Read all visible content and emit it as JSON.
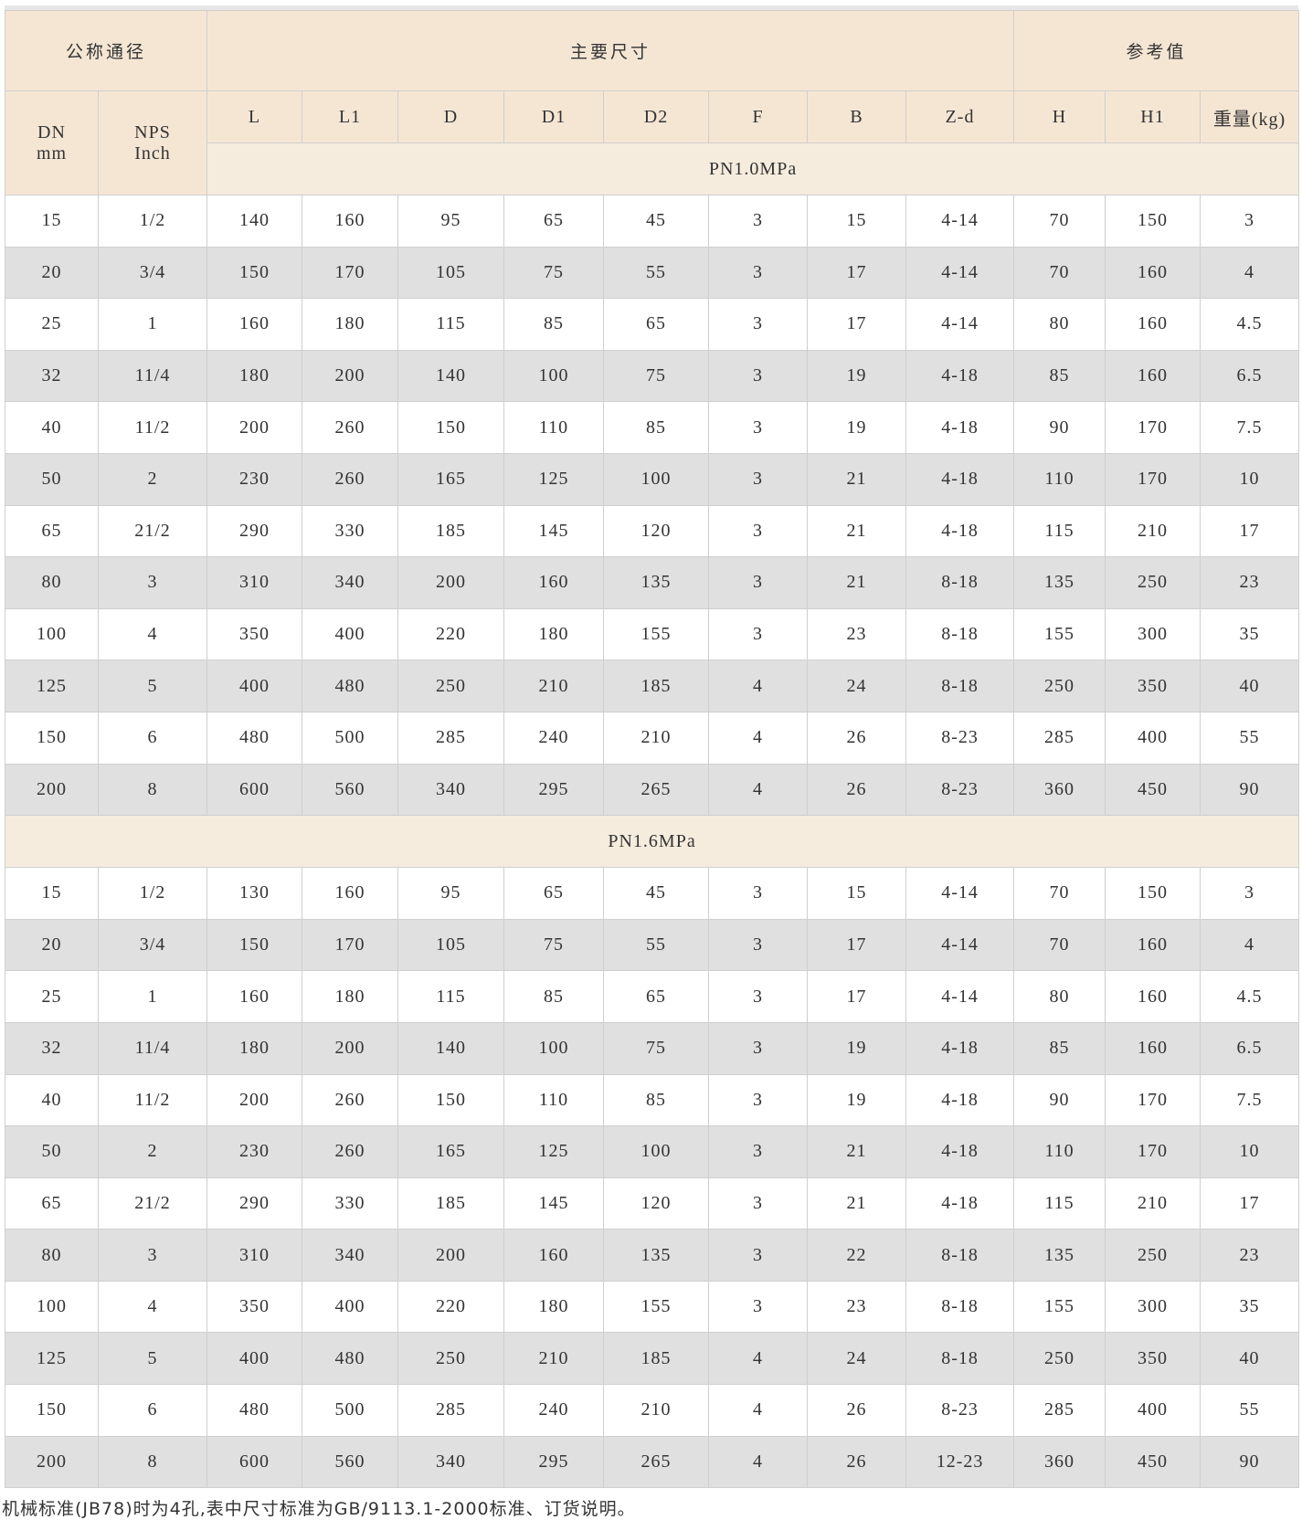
{
  "header": {
    "group_nominal": "公称通径",
    "group_main": "主要尺寸",
    "group_ref": "参考值",
    "dn": [
      "DN",
      "mm"
    ],
    "nps": [
      "NPS",
      "Inch"
    ],
    "columns": [
      "L",
      "L1",
      "D",
      "D1",
      "D2",
      "F",
      "B",
      "Z-d",
      "H",
      "H1",
      "重量(kg)"
    ]
  },
  "sections": [
    {
      "label": "PN1.0MPa",
      "rows": [
        [
          "15",
          "1/2",
          "140",
          "160",
          "95",
          "65",
          "45",
          "3",
          "15",
          "4-14",
          "70",
          "150",
          "3"
        ],
        [
          "20",
          "3/4",
          "150",
          "170",
          "105",
          "75",
          "55",
          "3",
          "17",
          "4-14",
          "70",
          "160",
          "4"
        ],
        [
          "25",
          "1",
          "160",
          "180",
          "115",
          "85",
          "65",
          "3",
          "17",
          "4-14",
          "80",
          "160",
          "4.5"
        ],
        [
          "32",
          "11/4",
          "180",
          "200",
          "140",
          "100",
          "75",
          "3",
          "19",
          "4-18",
          "85",
          "160",
          "6.5"
        ],
        [
          "40",
          "11/2",
          "200",
          "260",
          "150",
          "110",
          "85",
          "3",
          "19",
          "4-18",
          "90",
          "170",
          "7.5"
        ],
        [
          "50",
          "2",
          "230",
          "260",
          "165",
          "125",
          "100",
          "3",
          "21",
          "4-18",
          "110",
          "170",
          "10"
        ],
        [
          "65",
          "21/2",
          "290",
          "330",
          "185",
          "145",
          "120",
          "3",
          "21",
          "4-18",
          "115",
          "210",
          "17"
        ],
        [
          "80",
          "3",
          "310",
          "340",
          "200",
          "160",
          "135",
          "3",
          "21",
          "8-18",
          "135",
          "250",
          "23"
        ],
        [
          "100",
          "4",
          "350",
          "400",
          "220",
          "180",
          "155",
          "3",
          "23",
          "8-18",
          "155",
          "300",
          "35"
        ],
        [
          "125",
          "5",
          "400",
          "480",
          "250",
          "210",
          "185",
          "4",
          "24",
          "8-18",
          "250",
          "350",
          "40"
        ],
        [
          "150",
          "6",
          "480",
          "500",
          "285",
          "240",
          "210",
          "4",
          "26",
          "8-23",
          "285",
          "400",
          "55"
        ],
        [
          "200",
          "8",
          "600",
          "560",
          "340",
          "295",
          "265",
          "4",
          "26",
          "8-23",
          "360",
          "450",
          "90"
        ]
      ]
    },
    {
      "label": "PN1.6MPa",
      "rows": [
        [
          "15",
          "1/2",
          "130",
          "160",
          "95",
          "65",
          "45",
          "3",
          "15",
          "4-14",
          "70",
          "150",
          "3"
        ],
        [
          "20",
          "3/4",
          "150",
          "170",
          "105",
          "75",
          "55",
          "3",
          "17",
          "4-14",
          "70",
          "160",
          "4"
        ],
        [
          "25",
          "1",
          "160",
          "180",
          "115",
          "85",
          "65",
          "3",
          "17",
          "4-14",
          "80",
          "160",
          "4.5"
        ],
        [
          "32",
          "11/4",
          "180",
          "200",
          "140",
          "100",
          "75",
          "3",
          "19",
          "4-18",
          "85",
          "160",
          "6.5"
        ],
        [
          "40",
          "11/2",
          "200",
          "260",
          "150",
          "110",
          "85",
          "3",
          "19",
          "4-18",
          "90",
          "170",
          "7.5"
        ],
        [
          "50",
          "2",
          "230",
          "260",
          "165",
          "125",
          "100",
          "3",
          "21",
          "4-18",
          "110",
          "170",
          "10"
        ],
        [
          "65",
          "21/2",
          "290",
          "330",
          "185",
          "145",
          "120",
          "3",
          "21",
          "4-18",
          "115",
          "210",
          "17"
        ],
        [
          "80",
          "3",
          "310",
          "340",
          "200",
          "160",
          "135",
          "3",
          "22",
          "8-18",
          "135",
          "250",
          "23"
        ],
        [
          "100",
          "4",
          "350",
          "400",
          "220",
          "180",
          "155",
          "3",
          "23",
          "8-18",
          "155",
          "300",
          "35"
        ],
        [
          "125",
          "5",
          "400",
          "480",
          "250",
          "210",
          "185",
          "4",
          "24",
          "8-18",
          "250",
          "350",
          "40"
        ],
        [
          "150",
          "6",
          "480",
          "500",
          "285",
          "240",
          "210",
          "4",
          "26",
          "8-23",
          "285",
          "400",
          "55"
        ],
        [
          "200",
          "8",
          "600",
          "560",
          "340",
          "295",
          "265",
          "4",
          "26",
          "12-23",
          "360",
          "450",
          "90"
        ]
      ]
    }
  ],
  "footnote": "机械标准(JB78)时为4孔,表中尺寸标准为GB/9113.1-2000标准、订货说明。",
  "colors": {
    "header_bg": "#f5e6d4",
    "section_bg": "#f5ecdd",
    "alt_row_bg": "#e0e0e0",
    "border": "#cfcfcf"
  }
}
